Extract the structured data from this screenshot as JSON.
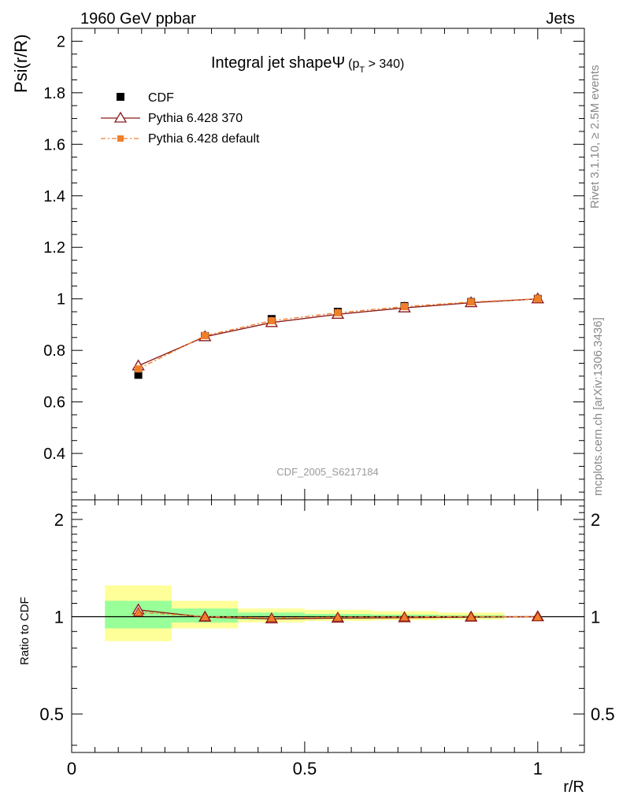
{
  "header": {
    "left": "1960 GeV ppbar",
    "right": "Jets"
  },
  "side_labels": {
    "rivet": "Rivet 3.1.10, ≥ 2.5M events",
    "mcplots": "mcplots.cern.ch [arXiv:1306.3436]"
  },
  "chart_data": [
    {
      "type": "line",
      "title": "Integral jet shapeΨ",
      "title_sub": "p",
      "title_sub_index": "T",
      "title_cut": " > 340)",
      "title_paren": "(",
      "ylabel": "Psi(r/R)",
      "xlim": [
        0,
        1.1
      ],
      "ylim": [
        0.22,
        2.05
      ],
      "yticks": [
        0.4,
        0.6,
        0.8,
        1,
        1.2,
        1.4,
        1.6,
        1.8,
        2
      ],
      "ytick_labels": [
        "0.4",
        "0.6",
        "0.8",
        "1",
        "1.2",
        "1.4",
        "1.6",
        "1.8",
        "2"
      ],
      "watermark": "CDF_2005_S6217184",
      "legend_position": "top-left",
      "series": [
        {
          "name": "CDF",
          "color": "#000000",
          "marker": "square",
          "x": [
            0.143,
            0.286,
            0.429,
            0.571,
            0.714,
            0.857,
            1.0
          ],
          "y": [
            0.705,
            0.856,
            0.922,
            0.95,
            0.972,
            0.988,
            1.0
          ]
        },
        {
          "name": "Pythia 6.428 370",
          "color": "#8b1a1a",
          "marker": "triangle-open",
          "x": [
            0.143,
            0.286,
            0.429,
            0.571,
            0.714,
            0.857,
            1.0
          ],
          "y": [
            0.74,
            0.853,
            0.908,
            0.94,
            0.965,
            0.985,
            1.0
          ]
        },
        {
          "name": "Pythia 6.428 default",
          "color": "#f07f2a",
          "marker": "square-small",
          "x": [
            0.143,
            0.286,
            0.429,
            0.571,
            0.714,
            0.857,
            1.0
          ],
          "y": [
            0.728,
            0.857,
            0.915,
            0.946,
            0.97,
            0.988,
            1.0
          ]
        }
      ]
    },
    {
      "type": "line",
      "ylabel": "Ratio to CDF",
      "xlabel": "r/R",
      "xlim": [
        0,
        1.1
      ],
      "ylim": [
        0.38,
        2.3
      ],
      "log_y": true,
      "xticks": [
        0,
        0.5,
        1
      ],
      "xtick_labels": [
        "0",
        "0.5",
        "1"
      ],
      "yticks": [
        0.5,
        1,
        2
      ],
      "ytick_labels": [
        "0.5",
        "1",
        "2"
      ],
      "bands": [
        {
          "x0": 0.0714,
          "x1": 0.2143,
          "yellow": [
            0.84,
            1.25
          ],
          "green": [
            0.92,
            1.12
          ]
        },
        {
          "x0": 0.2143,
          "x1": 0.3571,
          "yellow": [
            0.92,
            1.12
          ],
          "green": [
            0.96,
            1.06
          ]
        },
        {
          "x0": 0.3571,
          "x1": 0.5,
          "yellow": [
            0.96,
            1.06
          ],
          "green": [
            0.98,
            1.03
          ]
        },
        {
          "x0": 0.5,
          "x1": 0.6429,
          "yellow": [
            0.97,
            1.05
          ],
          "green": [
            0.985,
            1.02
          ]
        },
        {
          "x0": 0.6429,
          "x1": 0.7857,
          "yellow": [
            0.975,
            1.04
          ],
          "green": [
            0.99,
            1.015
          ]
        },
        {
          "x0": 0.7857,
          "x1": 0.9286,
          "yellow": [
            0.98,
            1.03
          ],
          "green": [
            0.99,
            1.01
          ]
        }
      ],
      "series": [
        {
          "name": "Pythia 6.428 370",
          "color": "#8b1a1a",
          "marker": "triangle-open",
          "x": [
            0.143,
            0.286,
            0.429,
            0.571,
            0.714,
            0.857,
            1.0
          ],
          "y": [
            1.05,
            0.997,
            0.985,
            0.99,
            0.993,
            0.997,
            1.0
          ]
        },
        {
          "name": "Pythia 6.428 default",
          "color": "#f07f2a",
          "marker": "triangle-filled",
          "x": [
            0.143,
            0.286,
            0.429,
            0.571,
            0.714,
            0.857,
            1.0
          ],
          "y": [
            1.033,
            1.0,
            0.992,
            0.996,
            0.998,
            1.0,
            1.0
          ]
        }
      ]
    }
  ]
}
